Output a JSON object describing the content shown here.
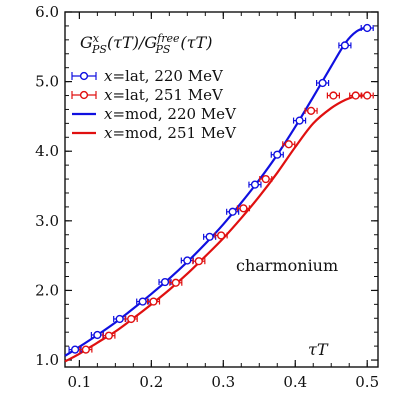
{
  "chart_data": {
    "type": "line",
    "title_parts": {
      "G": "G",
      "sup1": "x",
      "sub1": "PS",
      "arg1": "(τT)/",
      "G2": "G",
      "sup2": "free",
      "sub2": "PS",
      "arg2": "(τT)"
    },
    "xlabel": "τT",
    "ylabel": "",
    "annotation": "charmonium",
    "xlim": [
      0.08,
      0.515
    ],
    "ylim": [
      0.9,
      6.0
    ],
    "xticks": [
      0.1,
      0.2,
      0.3,
      0.4,
      0.5
    ],
    "xtick_labels": [
      "0.1",
      "0.2",
      "0.3",
      "0.4",
      "0.5"
    ],
    "yticks": [
      1.0,
      2.0,
      3.0,
      4.0,
      5.0,
      6.0
    ],
    "ytick_labels": [
      "1.0",
      "2.0",
      "3.0",
      "4.0",
      "5.0",
      "6.0"
    ],
    "legend_position": "top-left",
    "series": [
      {
        "name": "x=lat, 220 MeV",
        "legend_math": "x",
        "legend_rest": "=lat, 220 MeV",
        "kind": "points",
        "color": "#1010e0",
        "x": [
          0.094,
          0.125,
          0.156,
          0.188,
          0.219,
          0.25,
          0.281,
          0.313,
          0.344,
          0.375,
          0.406,
          0.438,
          0.469,
          0.5
        ],
        "y": [
          1.15,
          1.36,
          1.59,
          1.84,
          2.12,
          2.43,
          2.77,
          3.13,
          3.52,
          3.95,
          4.44,
          4.98,
          5.52,
          5.77
        ]
      },
      {
        "name": "x=lat, 251 MeV",
        "legend_math": "x",
        "legend_rest": "=lat, 251 MeV",
        "kind": "points",
        "color": "#e01010",
        "x": [
          0.109,
          0.141,
          0.172,
          0.203,
          0.234,
          0.266,
          0.297,
          0.328,
          0.359,
          0.391,
          0.422,
          0.453,
          0.484,
          0.5
        ],
        "y": [
          1.15,
          1.35,
          1.59,
          1.84,
          2.11,
          2.42,
          2.79,
          3.18,
          3.6,
          4.1,
          4.58,
          4.8,
          4.8,
          4.8
        ]
      },
      {
        "name": "x=mod, 220 MeV",
        "legend_math": "x",
        "legend_rest": "=mod, 220 MeV",
        "kind": "line",
        "color": "#1010e0",
        "x": [
          0.08,
          0.1,
          0.125,
          0.15,
          0.175,
          0.2,
          0.225,
          0.25,
          0.275,
          0.3,
          0.325,
          0.35,
          0.375,
          0.4,
          0.425,
          0.45,
          0.47,
          0.485,
          0.5,
          0.505
        ],
        "y": [
          1.06,
          1.19,
          1.36,
          1.54,
          1.74,
          1.95,
          2.17,
          2.41,
          2.67,
          2.95,
          3.26,
          3.59,
          3.95,
          4.35,
          4.78,
          5.22,
          5.56,
          5.72,
          5.78,
          5.77
        ]
      },
      {
        "name": "x=mod, 251 MeV",
        "legend_math": "x",
        "legend_rest": "=mod, 251 MeV",
        "kind": "line",
        "color": "#e01010",
        "x": [
          0.08,
          0.1,
          0.125,
          0.15,
          0.175,
          0.2,
          0.225,
          0.25,
          0.275,
          0.3,
          0.325,
          0.35,
          0.375,
          0.4,
          0.425,
          0.45,
          0.47,
          0.485,
          0.5,
          0.505
        ],
        "y": [
          0.98,
          1.09,
          1.25,
          1.41,
          1.6,
          1.8,
          2.01,
          2.24,
          2.49,
          2.75,
          3.04,
          3.35,
          3.69,
          4.06,
          4.4,
          4.62,
          4.74,
          4.79,
          4.8,
          4.79
        ]
      }
    ]
  }
}
